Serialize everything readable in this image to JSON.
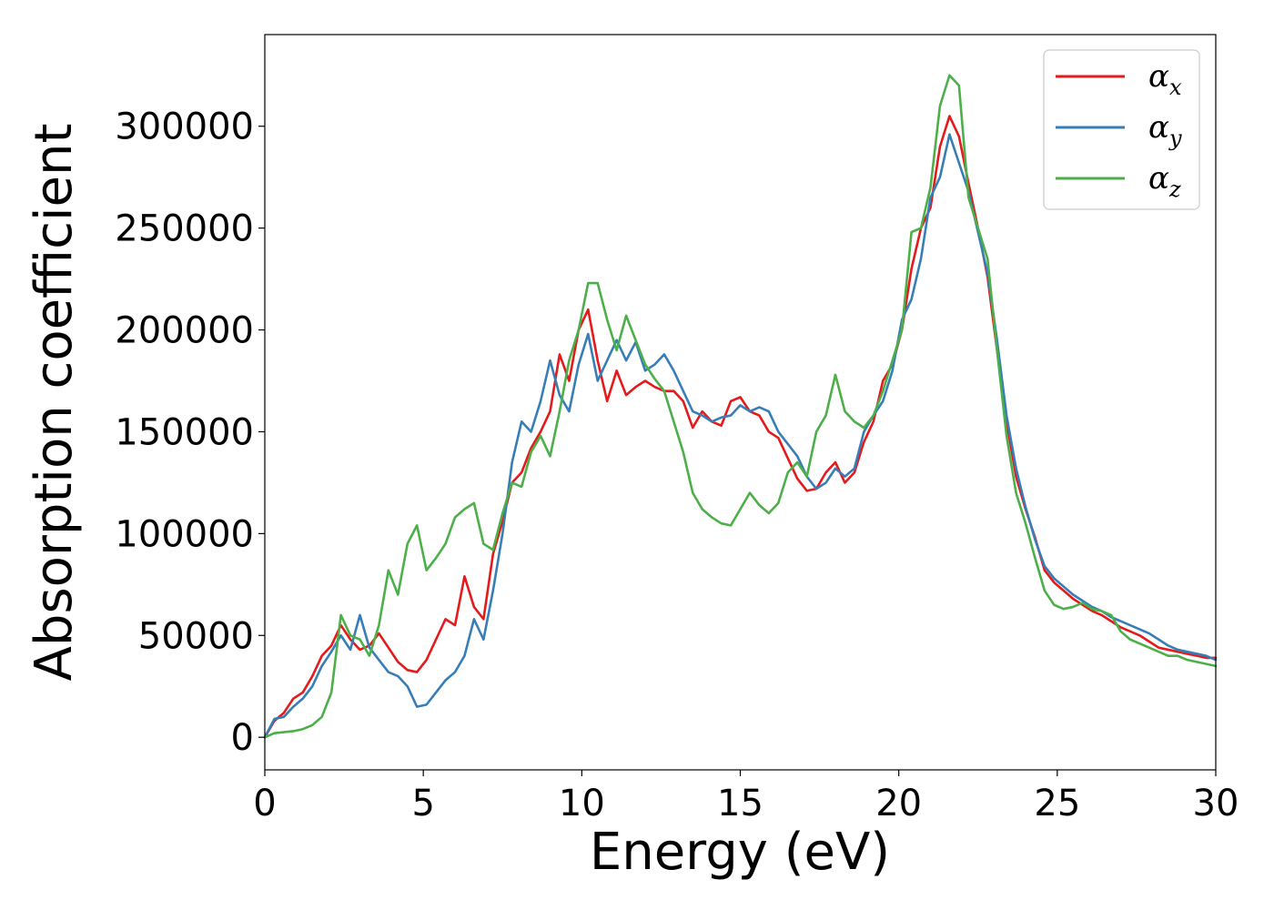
{
  "chart_data": {
    "type": "line",
    "title": "",
    "xlabel": "Energy (eV)",
    "ylabel": "Absorption coefficient",
    "xlim": [
      0,
      30
    ],
    "ylim": [
      -16000,
      345000
    ],
    "xticks": [
      0,
      5,
      10,
      15,
      20,
      25,
      30
    ],
    "yticks": [
      0,
      50000,
      100000,
      150000,
      200000,
      250000,
      300000
    ],
    "xtick_labels": [
      "0",
      "5",
      "10",
      "15",
      "20",
      "25",
      "30"
    ],
    "ytick_labels": [
      "0",
      "50000",
      "100000",
      "150000",
      "200000",
      "250000",
      "300000"
    ],
    "grid": false,
    "legend_position": "top-right",
    "series": [
      {
        "name": "α_x",
        "label_main": "α",
        "label_sub": "x",
        "color": "#e41a1c",
        "x": [
          0,
          0.3,
          0.6,
          0.9,
          1.2,
          1.5,
          1.8,
          2.1,
          2.4,
          2.7,
          3.0,
          3.3,
          3.6,
          3.9,
          4.2,
          4.5,
          4.8,
          5.1,
          5.4,
          5.7,
          6.0,
          6.3,
          6.6,
          6.9,
          7.2,
          7.5,
          7.8,
          8.1,
          8.4,
          8.7,
          9.0,
          9.3,
          9.6,
          9.9,
          10.2,
          10.5,
          10.8,
          11.1,
          11.4,
          11.7,
          12.0,
          12.3,
          12.6,
          12.9,
          13.2,
          13.5,
          13.8,
          14.1,
          14.4,
          14.7,
          15.0,
          15.3,
          15.6,
          15.9,
          16.2,
          16.5,
          16.8,
          17.1,
          17.4,
          17.7,
          18.0,
          18.3,
          18.6,
          18.9,
          19.2,
          19.5,
          19.8,
          20.1,
          20.4,
          20.7,
          21.0,
          21.3,
          21.6,
          21.9,
          22.2,
          22.5,
          22.8,
          23.1,
          23.4,
          23.7,
          24.0,
          24.3,
          24.6,
          24.9,
          25.2,
          25.5,
          25.8,
          26.1,
          26.4,
          26.7,
          27.0,
          27.3,
          27.6,
          27.9,
          28.2,
          28.5,
          28.8,
          29.1,
          29.4,
          29.7,
          30.0
        ],
        "values": [
          0,
          8000,
          12000,
          19000,
          22000,
          30000,
          40000,
          45000,
          55000,
          48000,
          43000,
          45000,
          51000,
          44000,
          37000,
          33000,
          32000,
          38000,
          48000,
          58000,
          55000,
          79000,
          64000,
          58000,
          90000,
          106000,
          125000,
          130000,
          142000,
          150000,
          160000,
          188000,
          175000,
          200000,
          210000,
          185000,
          165000,
          180000,
          168000,
          172000,
          175000,
          172000,
          170000,
          170000,
          165000,
          152000,
          160000,
          155000,
          153000,
          165000,
          167000,
          160000,
          158000,
          150000,
          147000,
          137000,
          127000,
          121000,
          122000,
          130000,
          135000,
          125000,
          130000,
          145000,
          155000,
          175000,
          183000,
          200000,
          230000,
          250000,
          260000,
          290000,
          305000,
          295000,
          272000,
          250000,
          226000,
          190000,
          155000,
          128000,
          112000,
          98000,
          82000,
          76000,
          72000,
          68000,
          65000,
          62000,
          60000,
          57000,
          54000,
          52000,
          50000,
          47000,
          44000,
          43000,
          42000,
          41000,
          40000,
          39000,
          39000
        ]
      },
      {
        "name": "α_y",
        "label_main": "α",
        "label_sub": "y",
        "color": "#377eb8",
        "x": [
          0,
          0.3,
          0.6,
          0.9,
          1.2,
          1.5,
          1.8,
          2.1,
          2.4,
          2.7,
          3.0,
          3.3,
          3.6,
          3.9,
          4.2,
          4.5,
          4.8,
          5.1,
          5.4,
          5.7,
          6.0,
          6.3,
          6.6,
          6.9,
          7.2,
          7.5,
          7.8,
          8.1,
          8.4,
          8.7,
          9.0,
          9.3,
          9.6,
          9.9,
          10.2,
          10.5,
          10.8,
          11.1,
          11.4,
          11.7,
          12.0,
          12.3,
          12.6,
          12.9,
          13.2,
          13.5,
          13.8,
          14.1,
          14.4,
          14.7,
          15.0,
          15.3,
          15.6,
          15.9,
          16.2,
          16.5,
          16.8,
          17.1,
          17.4,
          17.7,
          18.0,
          18.3,
          18.6,
          18.9,
          19.2,
          19.5,
          19.8,
          20.1,
          20.4,
          20.7,
          21.0,
          21.3,
          21.6,
          21.9,
          22.2,
          22.5,
          22.8,
          23.1,
          23.4,
          23.7,
          24.0,
          24.3,
          24.6,
          24.9,
          25.2,
          25.5,
          25.8,
          26.1,
          26.4,
          26.7,
          27.0,
          27.3,
          27.6,
          27.9,
          28.2,
          28.5,
          28.8,
          29.1,
          29.4,
          29.7,
          30.0
        ],
        "values": [
          0,
          9000,
          10000,
          15000,
          19000,
          25000,
          35000,
          42000,
          50000,
          43000,
          60000,
          44000,
          38000,
          32000,
          30000,
          25000,
          15000,
          16000,
          22000,
          28000,
          32000,
          40000,
          58000,
          48000,
          72000,
          100000,
          135000,
          155000,
          150000,
          165000,
          185000,
          168000,
          160000,
          183000,
          198000,
          175000,
          185000,
          195000,
          185000,
          194000,
          180000,
          183000,
          188000,
          180000,
          170000,
          160000,
          158000,
          155000,
          157000,
          158000,
          163000,
          160000,
          162000,
          160000,
          150000,
          144000,
          138000,
          128000,
          122000,
          125000,
          132000,
          128000,
          132000,
          150000,
          158000,
          165000,
          180000,
          205000,
          215000,
          235000,
          265000,
          275000,
          296000,
          282000,
          268000,
          248000,
          228000,
          195000,
          158000,
          132000,
          113000,
          97000,
          84000,
          78000,
          74000,
          70000,
          67000,
          64000,
          62000,
          59000,
          57000,
          55000,
          53000,
          51000,
          48000,
          45000,
          43000,
          42000,
          41000,
          40000,
          38000
        ]
      },
      {
        "name": "α_z",
        "label_main": "α",
        "label_sub": "z",
        "color": "#4daf4a",
        "x": [
          0,
          0.3,
          0.6,
          0.9,
          1.2,
          1.5,
          1.8,
          2.1,
          2.4,
          2.7,
          3.0,
          3.3,
          3.6,
          3.9,
          4.2,
          4.5,
          4.8,
          5.1,
          5.4,
          5.7,
          6.0,
          6.3,
          6.6,
          6.9,
          7.2,
          7.5,
          7.8,
          8.1,
          8.4,
          8.7,
          9.0,
          9.3,
          9.6,
          9.9,
          10.2,
          10.5,
          10.8,
          11.1,
          11.4,
          11.7,
          12.0,
          12.3,
          12.6,
          12.9,
          13.2,
          13.5,
          13.8,
          14.1,
          14.4,
          14.7,
          15.0,
          15.3,
          15.6,
          15.9,
          16.2,
          16.5,
          16.8,
          17.1,
          17.4,
          17.7,
          18.0,
          18.3,
          18.6,
          18.9,
          19.2,
          19.5,
          19.8,
          20.1,
          20.4,
          20.7,
          21.0,
          21.3,
          21.6,
          21.9,
          22.2,
          22.5,
          22.8,
          23.1,
          23.4,
          23.7,
          24.0,
          24.3,
          24.6,
          24.9,
          25.2,
          25.5,
          25.8,
          26.1,
          26.4,
          26.7,
          27.0,
          27.3,
          27.6,
          27.9,
          28.2,
          28.5,
          28.8,
          29.1,
          29.4,
          29.7,
          30.0
        ],
        "values": [
          0,
          2000,
          2500,
          3000,
          4000,
          6000,
          10000,
          22000,
          60000,
          50000,
          48000,
          40000,
          55000,
          82000,
          70000,
          95000,
          104000,
          82000,
          88000,
          95000,
          108000,
          112000,
          115000,
          95000,
          92000,
          110000,
          125000,
          123000,
          140000,
          148000,
          138000,
          160000,
          185000,
          200000,
          223000,
          223000,
          205000,
          190000,
          207000,
          195000,
          183000,
          176000,
          170000,
          155000,
          140000,
          120000,
          112000,
          108000,
          105000,
          104000,
          112000,
          120000,
          114000,
          110000,
          115000,
          130000,
          135000,
          128000,
          150000,
          158000,
          178000,
          160000,
          155000,
          152000,
          158000,
          170000,
          185000,
          200000,
          248000,
          250000,
          270000,
          310000,
          325000,
          320000,
          265000,
          250000,
          235000,
          190000,
          148000,
          120000,
          105000,
          88000,
          72000,
          65000,
          63000,
          64000,
          66000,
          63000,
          62000,
          60000,
          52000,
          48000,
          46000,
          44000,
          42000,
          40000,
          40000,
          38000,
          37000,
          36000,
          35000
        ]
      }
    ]
  }
}
